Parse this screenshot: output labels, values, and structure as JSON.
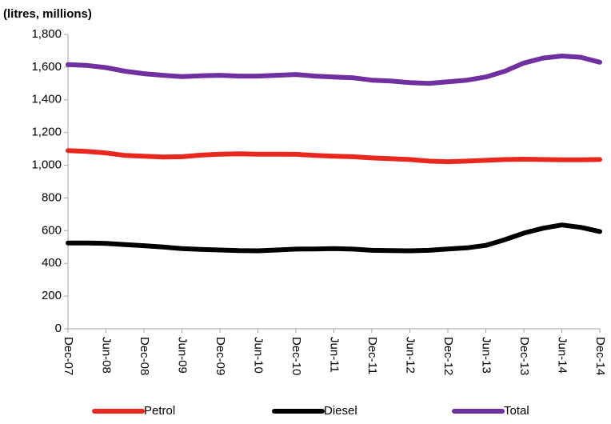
{
  "chart_data": {
    "type": "line",
    "y_label": "(litres, millions)",
    "categories": [
      "Dec-07",
      null,
      "Jun-08",
      null,
      "Dec-08",
      null,
      "Jun-09",
      null,
      "Dec-09",
      null,
      "Jun-10",
      null,
      "Dec-10",
      null,
      "Jun-11",
      null,
      "Dec-11",
      null,
      "Jun-12",
      null,
      "Dec-12",
      null,
      "Jun-13",
      null,
      "Dec-13",
      null,
      "Jun-14",
      null,
      "Dec-14"
    ],
    "series": [
      {
        "name": "Petrol",
        "color": "#e8281e",
        "values": [
          1090,
          1085,
          1075,
          1060,
          1055,
          1050,
          1052,
          1062,
          1068,
          1070,
          1068,
          1068,
          1067,
          1060,
          1055,
          1052,
          1045,
          1040,
          1035,
          1025,
          1022,
          1025,
          1030,
          1035,
          1037,
          1035,
          1033,
          1033,
          1035
        ]
      },
      {
        "name": "Diesel",
        "color": "#000000",
        "values": [
          525,
          525,
          522,
          515,
          508,
          500,
          490,
          485,
          482,
          478,
          477,
          482,
          487,
          488,
          490,
          487,
          480,
          478,
          477,
          480,
          488,
          495,
          510,
          545,
          585,
          615,
          635,
          620,
          595
        ]
      },
      {
        "name": "Total",
        "color": "#7030a0",
        "values": [
          1615,
          1610,
          1597,
          1575,
          1560,
          1550,
          1542,
          1547,
          1550,
          1545,
          1545,
          1550,
          1555,
          1545,
          1540,
          1535,
          1520,
          1515,
          1505,
          1500,
          1510,
          1520,
          1540,
          1575,
          1625,
          1655,
          1668,
          1660,
          1630
        ]
      }
    ],
    "ylim": [
      0,
      1800
    ],
    "yticks": [
      0,
      200,
      400,
      600,
      800,
      {
        "value": 1000,
        "label": "1,000"
      },
      {
        "value": 1200,
        "label": "1,200"
      },
      {
        "value": 1400,
        "label": "1,400"
      },
      {
        "value": 1600,
        "label": "1,600"
      },
      {
        "value": 1800,
        "label": "1,800"
      }
    ],
    "legend": "bottom"
  }
}
